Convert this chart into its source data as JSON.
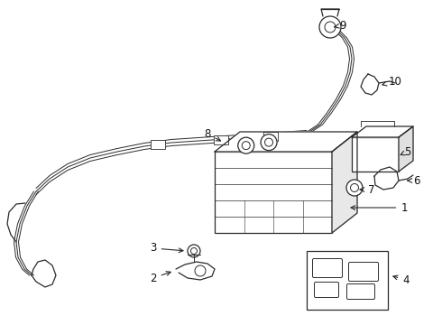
{
  "bg_color": "#ffffff",
  "line_color": "#2a2a2a",
  "line_width": 0.9,
  "label_fontsize": 8.5,
  "label_color": "#111111",
  "fig_width": 4.9,
  "fig_height": 3.6,
  "dpi": 100
}
